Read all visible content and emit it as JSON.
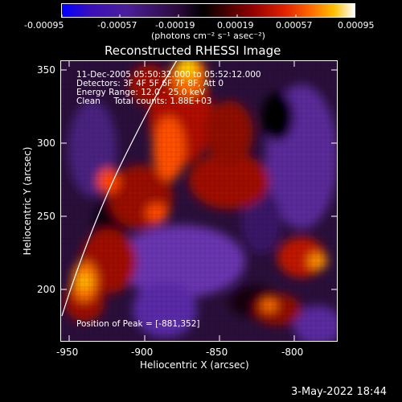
{
  "colorbar": {
    "ticks": [
      "-0.00095",
      "-0.00057",
      "-0.00019",
      "0.00019",
      "0.00057",
      "0.00095"
    ],
    "unit": "(photons cm⁻² s⁻¹ asec⁻²)"
  },
  "plot": {
    "title": "Reconstructed RHESSI Image",
    "xlabel": "Heliocentric X (arcsec)",
    "ylabel": "Heliocentric Y (arcsec)",
    "xticks": [
      "-950",
      "-900",
      "-850",
      "-800"
    ],
    "yticks": [
      "350",
      "300",
      "250",
      "200"
    ],
    "info": {
      "line1": "11-Dec-2005 05:50:32.000 to 05:52:12.000",
      "line2": "Detectors: 3F 4F 5F 6F 7F 8F, Att 0",
      "line3": "Energy Range: 12.0 - 25.0 keV",
      "line4": "Clean     Total counts: 1.88E+03"
    },
    "peak": "Position of Peak = [-881,352]"
  },
  "footer": {
    "date": "3-May-2022 18:44"
  }
}
